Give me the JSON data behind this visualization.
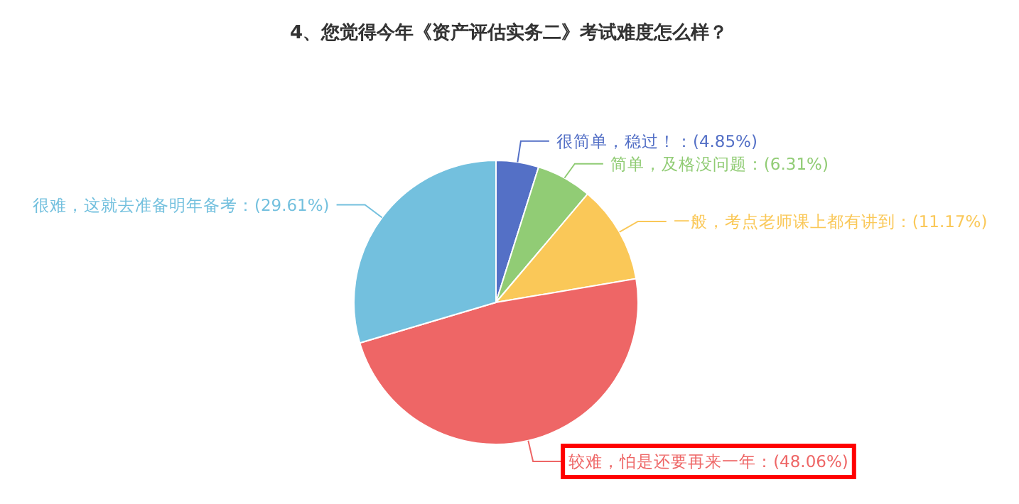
{
  "chart_data": {
    "type": "pie",
    "title": "4、您觉得今年《资产评估实务二》考试难度怎么样？",
    "categories": [
      "很简单，稳过！：(4.85%)",
      "简单，及格没问题：(6.31%)",
      "一般，考点老师课上都有讲到：(11.17%)",
      "较难，怕是还要再来一年：(48.06%)",
      "很难，这就去准备明年备考：(29.61%)"
    ],
    "values": [
      4.85,
      6.31,
      11.17,
      48.06,
      29.61
    ],
    "colors": [
      "#5470c6",
      "#91cc75",
      "#fac858",
      "#ee6666",
      "#73c0de"
    ]
  }
}
